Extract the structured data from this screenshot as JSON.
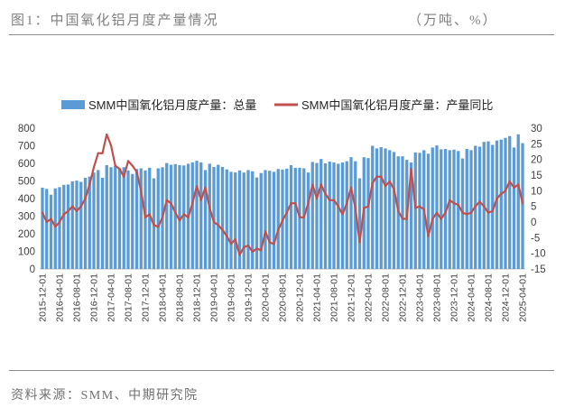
{
  "chart_data": {
    "type": "bar",
    "title": "图1：中国氧化铝月度产量情况",
    "unit": "（万吨、%）",
    "legend": "top",
    "grid": false,
    "x": [
      "2015-12-01",
      "2016-01-01",
      "2016-02-01",
      "2016-03-01",
      "2016-04-01",
      "2016-05-01",
      "2016-06-01",
      "2016-07-01",
      "2016-08-01",
      "2016-09-01",
      "2016-10-01",
      "2016-11-01",
      "2016-12-01",
      "2017-01-01",
      "2017-02-01",
      "2017-03-01",
      "2017-04-01",
      "2017-05-01",
      "2017-06-01",
      "2017-07-01",
      "2017-08-01",
      "2017-09-01",
      "2017-10-01",
      "2017-11-01",
      "2017-12-01",
      "2018-01-01",
      "2018-02-01",
      "2018-03-01",
      "2018-04-01",
      "2018-05-01",
      "2018-06-01",
      "2018-07-01",
      "2018-08-01",
      "2018-09-01",
      "2018-10-01",
      "2018-11-01",
      "2018-12-01",
      "2019-01-01",
      "2019-02-01",
      "2019-03-01",
      "2019-04-01",
      "2019-05-01",
      "2019-06-01",
      "2019-07-01",
      "2019-08-01",
      "2019-09-01",
      "2019-10-01",
      "2019-11-01",
      "2019-12-01",
      "2020-01-01",
      "2020-02-01",
      "2020-03-01",
      "2020-04-01",
      "2020-05-01",
      "2020-06-01",
      "2020-07-01",
      "2020-08-01",
      "2020-09-01",
      "2020-10-01",
      "2020-11-01",
      "2020-12-01",
      "2021-01-01",
      "2021-02-01",
      "2021-03-01",
      "2021-04-01",
      "2021-05-01",
      "2021-06-01",
      "2021-07-01",
      "2021-08-01",
      "2021-09-01",
      "2021-10-01",
      "2021-11-01",
      "2021-12-01",
      "2022-01-01",
      "2022-02-01",
      "2022-03-01",
      "2022-04-01",
      "2022-05-01",
      "2022-06-01",
      "2022-07-01",
      "2022-08-01",
      "2022-09-01",
      "2022-10-01",
      "2022-11-01",
      "2022-12-01",
      "2023-01-01",
      "2023-02-01",
      "2023-03-01",
      "2023-04-01",
      "2023-05-01",
      "2023-06-01",
      "2023-07-01",
      "2023-08-01",
      "2023-09-01",
      "2023-10-01",
      "2023-11-01",
      "2023-12-01",
      "2024-01-01",
      "2024-02-01",
      "2024-03-01",
      "2024-04-01",
      "2024-05-01",
      "2024-06-01",
      "2024-07-01",
      "2024-08-01",
      "2024-09-01",
      "2024-10-01",
      "2024-11-01",
      "2024-12-01",
      "2025-01-01",
      "2025-02-01",
      "2025-03-01",
      "2025-04-01"
    ],
    "series": [
      {
        "name": "SMM中国氧化铝月度产量：总量",
        "type": "bar",
        "axis": "left",
        "color": "#5b9bd5",
        "values": [
          462,
          455,
          422,
          458,
          465,
          478,
          480,
          498,
          502,
          495,
          518,
          525,
          548,
          562,
          518,
          590,
          578,
          585,
          572,
          578,
          560,
          540,
          568,
          572,
          560,
          575,
          515,
          572,
          578,
          602,
          592,
          596,
          590,
          588,
          598,
          605,
          615,
          606,
          562,
          598,
          580,
          592,
          580,
          566,
          552,
          548,
          560,
          548,
          562,
          555,
          520,
          545,
          562,
          558,
          552,
          568,
          565,
          570,
          590,
          575,
          575,
          572,
          548,
          608,
          602,
          625,
          600,
          610,
          605,
          598,
          605,
          612,
          635,
          612,
          515,
          635,
          630,
          700,
          685,
          692,
          685,
          675,
          665,
          640,
          640,
          620,
          605,
          662,
          660,
          675,
          655,
          690,
          702,
          680,
          682,
          675,
          678,
          670,
          628,
          682,
          675,
          700,
          695,
          722,
          725,
          705,
          730,
          735,
          745,
          755,
          690,
          765,
          715
        ]
      },
      {
        "name": "SMM中国氧化铝月度产量：产量同比",
        "type": "line",
        "axis": "right",
        "color": "#c0504d",
        "values": [
          3.0,
          0.0,
          1.0,
          -1.5,
          0.0,
          2.5,
          3.5,
          5.0,
          3.5,
          5.0,
          7.5,
          12.0,
          17.5,
          22.0,
          22.0,
          28.0,
          24.5,
          18.0,
          17.0,
          14.5,
          19.5,
          18.0,
          16.0,
          10.0,
          1.5,
          2.5,
          -1.0,
          -1.5,
          1.5,
          7.0,
          6.0,
          3.0,
          0.5,
          2.5,
          1.5,
          6.0,
          11.5,
          7.0,
          11.0,
          4.5,
          0.0,
          -1.0,
          -2.5,
          -4.5,
          -7.0,
          -5.5,
          -10.5,
          -8.0,
          -7.5,
          -9.5,
          -8.5,
          -9.0,
          -3.0,
          -6.5,
          -7.0,
          -2.5,
          0.5,
          3.0,
          6.0,
          6.0,
          1.5,
          1.5,
          6.0,
          12.0,
          7.5,
          12.0,
          9.0,
          7.0,
          7.0,
          5.0,
          2.5,
          6.0,
          11.0,
          4.5,
          -6.5,
          4.5,
          5.0,
          12.5,
          14.5,
          14.5,
          11.5,
          13.0,
          10.5,
          3.5,
          1.0,
          1.0,
          17.0,
          4.5,
          5.0,
          4.0,
          -4.5,
          1.0,
          3.0,
          1.0,
          3.0,
          7.0,
          6.0,
          5.5,
          3.0,
          2.5,
          3.0,
          5.0,
          6.5,
          5.0,
          3.0,
          3.5,
          7.5,
          9.0,
          10.0,
          13.0,
          11.0,
          12.0,
          6.0
        ]
      }
    ],
    "ylim": [
      0,
      800
    ],
    "yticks": [
      0,
      100,
      200,
      300,
      400,
      500,
      600,
      700,
      800
    ],
    "y2lim": [
      -15,
      30
    ],
    "y2ticks": [
      -15,
      -10,
      -5,
      0,
      5,
      10,
      15,
      20,
      25,
      30
    ]
  },
  "source": "资料来源：SMM、中期研究院"
}
